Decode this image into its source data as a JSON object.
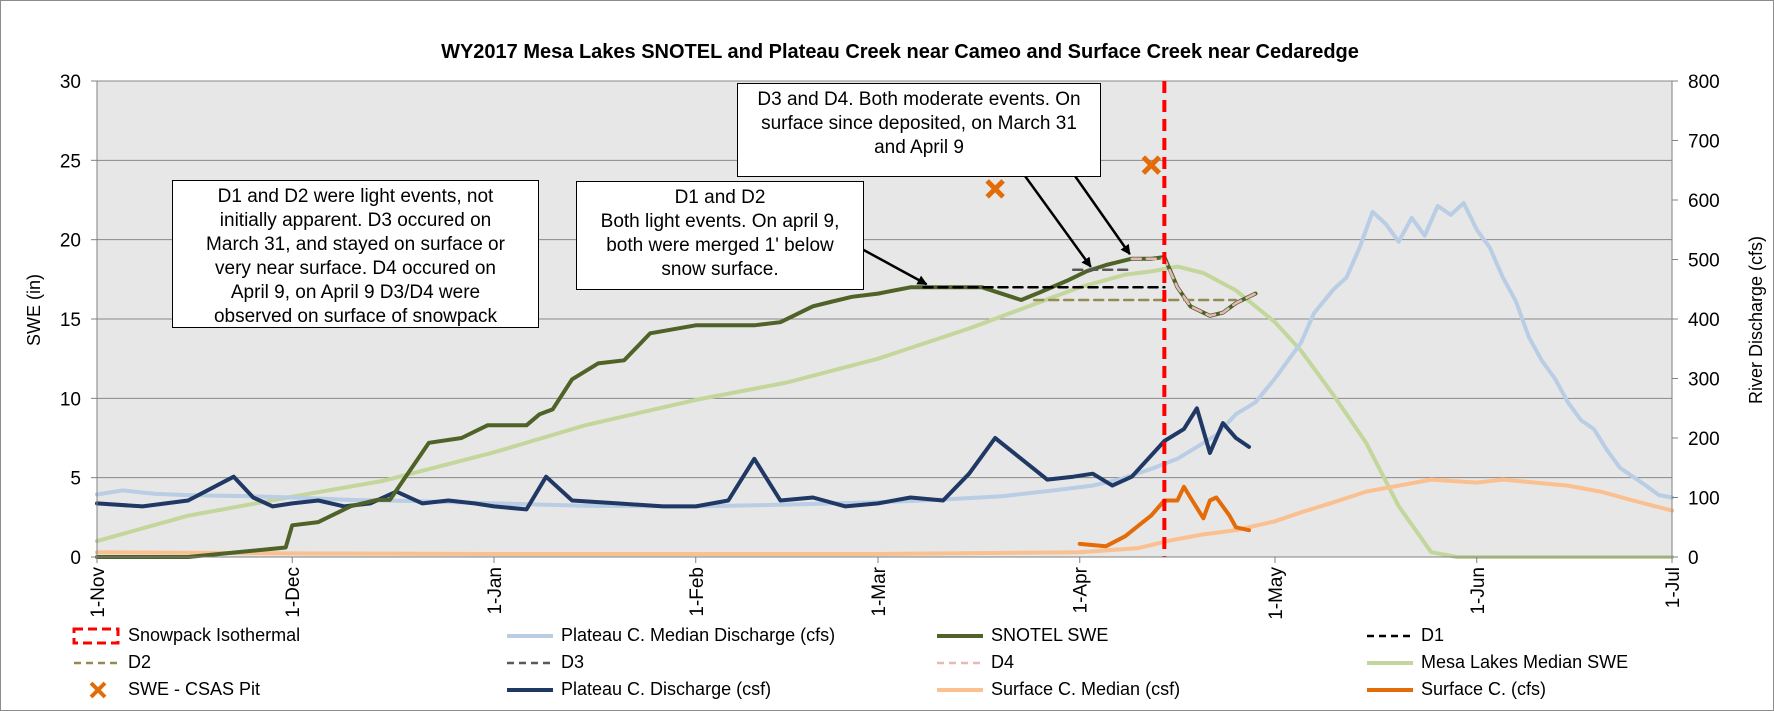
{
  "chart_data": {
    "type": "line",
    "title": "WY2017 Mesa Lakes SNOTEL and Plateau Creek near Cameo and Surface Creek near Cedaredge",
    "ylabel": "SWE (in)",
    "y2label": "River Discharge (cfs)",
    "ylim": [
      0,
      30
    ],
    "y2lim": [
      0,
      800
    ],
    "yticks": [
      "0",
      "5",
      "10",
      "15",
      "20",
      "25",
      "30"
    ],
    "y2ticks": [
      "0",
      "100",
      "200",
      "300",
      "400",
      "500",
      "600",
      "700",
      "800"
    ],
    "xlim": [
      "2016-11-01",
      "2017-07-01"
    ],
    "xticks": [
      {
        "label": "1-Nov",
        "date": "2016-11-01"
      },
      {
        "label": "1-Dec",
        "date": "2016-12-01"
      },
      {
        "label": "1-Jan",
        "date": "2017-01-01"
      },
      {
        "label": "1-Feb",
        "date": "2017-02-01"
      },
      {
        "label": "1-Mar",
        "date": "2017-03-01"
      },
      {
        "label": "1-Apr",
        "date": "2017-04-01"
      },
      {
        "label": "1-May",
        "date": "2017-05-01"
      },
      {
        "label": "1-Jun",
        "date": "2017-06-01"
      },
      {
        "label": "1-Jul",
        "date": "2017-07-01"
      }
    ],
    "grid": true,
    "legend_position": "bottom",
    "isothermal_date": "2017-04-14",
    "series": [
      {
        "name": "Plateau C. Median Discharge (cfs)",
        "axis": "right",
        "color": "#b9cde5",
        "width": 4,
        "dash": "solid",
        "x": [
          "2016-11-01",
          "2016-11-05",
          "2016-11-10",
          "2016-11-15",
          "2016-11-20",
          "2016-11-25",
          "2016-12-01",
          "2016-12-10",
          "2016-12-20",
          "2017-01-01",
          "2017-01-15",
          "2017-02-01",
          "2017-02-15",
          "2017-03-01",
          "2017-03-10",
          "2017-03-20",
          "2017-03-28",
          "2017-04-03",
          "2017-04-07",
          "2017-04-12",
          "2017-04-16",
          "2017-04-19",
          "2017-04-22",
          "2017-04-25",
          "2017-04-28",
          "2017-05-01",
          "2017-05-03",
          "2017-05-05",
          "2017-05-07",
          "2017-05-10",
          "2017-05-12",
          "2017-05-14",
          "2017-05-16",
          "2017-05-18",
          "2017-05-20",
          "2017-05-22",
          "2017-05-24",
          "2017-05-26",
          "2017-05-28",
          "2017-05-30",
          "2017-06-01",
          "2017-06-03",
          "2017-06-05",
          "2017-06-07",
          "2017-06-09",
          "2017-06-11",
          "2017-06-13",
          "2017-06-15",
          "2017-06-17",
          "2017-06-19",
          "2017-06-21",
          "2017-06-23",
          "2017-06-25",
          "2017-06-27",
          "2017-06-29",
          "2017-07-01"
        ],
        "values": [
          105,
          112,
          106,
          104,
          103,
          102,
          100,
          96,
          94,
          90,
          86,
          85,
          88,
          92,
          96,
          102,
          112,
          120,
          130,
          148,
          165,
          185,
          205,
          240,
          260,
          300,
          330,
          360,
          410,
          450,
          470,
          520,
          580,
          560,
          530,
          570,
          540,
          590,
          575,
          595,
          550,
          520,
          470,
          430,
          370,
          330,
          300,
          260,
          230,
          215,
          180,
          150,
          135,
          120,
          104,
          100
        ]
      },
      {
        "name": "SNOTEL SWE",
        "axis": "left",
        "color": "#4f6228",
        "width": 4,
        "dash": "solid",
        "x": [
          "2016-11-01",
          "2016-11-15",
          "2016-11-30",
          "2016-12-01",
          "2016-12-05",
          "2016-12-10",
          "2016-12-14",
          "2016-12-16",
          "2016-12-22",
          "2016-12-27",
          "2016-12-31",
          "2017-01-03",
          "2017-01-06",
          "2017-01-08",
          "2017-01-10",
          "2017-01-13",
          "2017-01-17",
          "2017-01-21",
          "2017-01-25",
          "2017-02-01",
          "2017-02-10",
          "2017-02-14",
          "2017-02-19",
          "2017-02-22",
          "2017-02-25",
          "2017-03-01",
          "2017-03-06",
          "2017-03-08",
          "2017-03-12",
          "2017-03-17",
          "2017-03-23",
          "2017-03-26",
          "2017-03-30",
          "2017-04-02",
          "2017-04-05",
          "2017-04-09",
          "2017-04-12",
          "2017-04-14",
          "2017-04-16",
          "2017-04-18",
          "2017-04-21",
          "2017-04-23",
          "2017-04-25",
          "2017-04-28"
        ],
        "values": [
          0,
          0,
          0.6,
          2.0,
          2.2,
          3.2,
          3.6,
          3.6,
          7.2,
          7.5,
          8.3,
          8.3,
          8.3,
          9.0,
          9.3,
          11.2,
          12.2,
          12.4,
          14.1,
          14.6,
          14.6,
          14.8,
          15.8,
          16.1,
          16.4,
          16.6,
          17.0,
          17.0,
          17.0,
          17.0,
          16.2,
          16.7,
          17.4,
          18.0,
          18.4,
          18.8,
          18.8,
          18.9,
          17.0,
          15.8,
          15.2,
          15.4,
          16.0,
          16.6
        ]
      },
      {
        "name": "Mesa Lakes Median SWE",
        "axis": "left",
        "color": "#c3d69b",
        "width": 4,
        "dash": "solid",
        "x": [
          "2016-11-01",
          "2016-11-15",
          "2016-12-01",
          "2016-12-15",
          "2017-01-01",
          "2017-01-15",
          "2017-02-01",
          "2017-02-15",
          "2017-03-01",
          "2017-03-15",
          "2017-04-01",
          "2017-04-08",
          "2017-04-12",
          "2017-04-16",
          "2017-04-20",
          "2017-04-25",
          "2017-05-01",
          "2017-05-05",
          "2017-05-10",
          "2017-05-15",
          "2017-05-20",
          "2017-05-25",
          "2017-05-29",
          "2017-06-01",
          "2017-06-15",
          "2017-07-01"
        ],
        "values": [
          1.0,
          2.6,
          3.8,
          4.8,
          6.6,
          8.3,
          9.9,
          11.0,
          12.5,
          14.4,
          17.0,
          17.8,
          18.0,
          18.3,
          17.9,
          16.8,
          14.8,
          13.0,
          10.2,
          7.2,
          3.2,
          0.3,
          0,
          0,
          0,
          0
        ]
      },
      {
        "name": "Plateau C. Discharge (csf)",
        "axis": "right",
        "color": "#1f3864",
        "width": 4,
        "dash": "solid",
        "x": [
          "2016-11-01",
          "2016-11-08",
          "2016-11-15",
          "2016-11-22",
          "2016-11-25",
          "2016-11-28",
          "2016-12-01",
          "2016-12-05",
          "2016-12-09",
          "2016-12-13",
          "2016-12-17",
          "2016-12-21",
          "2016-12-25",
          "2016-12-29",
          "2017-01-01",
          "2017-01-06",
          "2017-01-09",
          "2017-01-13",
          "2017-01-20",
          "2017-01-27",
          "2017-02-01",
          "2017-02-06",
          "2017-02-10",
          "2017-02-14",
          "2017-02-19",
          "2017-02-24",
          "2017-03-01",
          "2017-03-06",
          "2017-03-11",
          "2017-03-15",
          "2017-03-19",
          "2017-03-23",
          "2017-03-27",
          "2017-03-31",
          "2017-04-03",
          "2017-04-06",
          "2017-04-09",
          "2017-04-14",
          "2017-04-17",
          "2017-04-19",
          "2017-04-21",
          "2017-04-23",
          "2017-04-25",
          "2017-04-27"
        ],
        "values": [
          90,
          85,
          95,
          135,
          100,
          85,
          90,
          95,
          85,
          90,
          110,
          90,
          95,
          90,
          85,
          80,
          135,
          95,
          90,
          85,
          85,
          95,
          165,
          95,
          100,
          85,
          90,
          100,
          95,
          140,
          200,
          165,
          130,
          135,
          140,
          120,
          135,
          195,
          215,
          250,
          175,
          225,
          200,
          185
        ]
      },
      {
        "name": "Surface C. Median (csf)",
        "axis": "right",
        "color": "#fac090",
        "width": 4,
        "dash": "solid",
        "x": [
          "2016-11-01",
          "2016-12-01",
          "2017-01-01",
          "2017-02-01",
          "2017-03-01",
          "2017-04-01",
          "2017-04-10",
          "2017-04-15",
          "2017-04-20",
          "2017-04-25",
          "2017-05-01",
          "2017-05-05",
          "2017-05-10",
          "2017-05-15",
          "2017-05-20",
          "2017-05-25",
          "2017-06-01",
          "2017-06-05",
          "2017-06-10",
          "2017-06-15",
          "2017-06-20",
          "2017-06-25",
          "2017-07-01"
        ],
        "values": [
          8,
          6,
          5,
          5,
          5,
          8,
          15,
          28,
          38,
          45,
          60,
          75,
          92,
          110,
          120,
          130,
          125,
          130,
          125,
          120,
          110,
          95,
          78
        ]
      },
      {
        "name": "Surface C. (cfs)",
        "axis": "right",
        "color": "#e36c09",
        "width": 4,
        "dash": "solid",
        "x": [
          "2017-04-01",
          "2017-04-05",
          "2017-04-08",
          "2017-04-12",
          "2017-04-14",
          "2017-04-16",
          "2017-04-17",
          "2017-04-18",
          "2017-04-20",
          "2017-04-21",
          "2017-04-22",
          "2017-04-24",
          "2017-04-25",
          "2017-04-27"
        ],
        "values": [
          22,
          18,
          35,
          70,
          95,
          95,
          118,
          100,
          65,
          95,
          100,
          70,
          50,
          45
        ]
      },
      {
        "name": "D1",
        "axis": "left",
        "color": "#000000",
        "width": 2.5,
        "dash": "dash",
        "x": [
          "2017-03-08",
          "2017-04-14"
        ],
        "values": [
          17.0,
          17.0
        ]
      },
      {
        "name": "D2",
        "axis": "left",
        "color": "#948a54",
        "width": 2.5,
        "dash": "dash",
        "x": [
          "2017-03-25",
          "2017-04-25"
        ],
        "values": [
          16.2,
          16.2
        ]
      },
      {
        "name": "D3",
        "axis": "left",
        "color": "#595959",
        "width": 2.5,
        "dash": "dash",
        "x": [
          "2017-03-31",
          "2017-04-09"
        ],
        "values": [
          18.1,
          18.1
        ]
      },
      {
        "name": "D4",
        "axis": "left",
        "color": "#e6b9b8",
        "width": 2.5,
        "dash": "dash",
        "x": [
          "2017-04-09",
          "2017-04-14",
          "2017-04-16",
          "2017-04-18",
          "2017-04-21",
          "2017-04-23",
          "2017-04-25",
          "2017-04-28"
        ],
        "values": [
          18.8,
          18.8,
          17.0,
          15.8,
          15.2,
          15.4,
          16.0,
          16.6
        ]
      },
      {
        "name": "SWE - CSAS Pit",
        "axis": "left",
        "color": "#e36c09",
        "marker": "x",
        "x": [
          "2017-03-19",
          "2017-04-12"
        ],
        "values": [
          23.2,
          24.7
        ]
      }
    ],
    "annotations": [
      {
        "text": "D1 and D2 were light events, not\ninitially apparent.  D3 occured on\nMarch 31, and stayed on surface or\nvery near surface.  D4 occured on\nApril 9, on April 9 D3/D4 were\nobserved on surface of snowpack"
      },
      {
        "text": "D1 and D2\nBoth light events. On april 9,\nboth were merged 1' below\nsnow surface.",
        "arrow_to": {
          "date": "2017-03-08",
          "value": 17.0
        }
      },
      {
        "text": "D3 and D4.  Both moderate events.  On\nsurface since deposited, on March 31\nand April 9",
        "arrows_to": [
          {
            "date": "2017-04-03",
            "value": 18.1
          },
          {
            "date": "2017-04-09",
            "value": 18.9
          }
        ]
      }
    ],
    "legend": [
      "Snowpack Isothermal",
      "Plateau C. Median Discharge (cfs)",
      "SNOTEL SWE",
      "D1",
      "D2",
      "D3",
      "D4",
      "Mesa Lakes Median SWE",
      "SWE - CSAS Pit",
      "Plateau C. Discharge (csf)",
      "Surface C. Median (csf)",
      "Surface C. (cfs)"
    ],
    "legend_styles": [
      {
        "kind": "rect-dash",
        "color": "#ff0000"
      },
      {
        "kind": "line",
        "color": "#b9cde5"
      },
      {
        "kind": "line",
        "color": "#4f6228"
      },
      {
        "kind": "dash",
        "color": "#000000"
      },
      {
        "kind": "dash",
        "color": "#948a54"
      },
      {
        "kind": "dash",
        "color": "#595959"
      },
      {
        "kind": "dash",
        "color": "#e6b9b8"
      },
      {
        "kind": "line",
        "color": "#c3d69b"
      },
      {
        "kind": "x",
        "color": "#e36c09"
      },
      {
        "kind": "line",
        "color": "#1f3864"
      },
      {
        "kind": "line",
        "color": "#fac090"
      },
      {
        "kind": "line",
        "color": "#e36c09"
      }
    ],
    "colors": {
      "plot_bg": "#e7e7e7",
      "grid": "#888888",
      "isothermal": "#ff0000"
    }
  }
}
